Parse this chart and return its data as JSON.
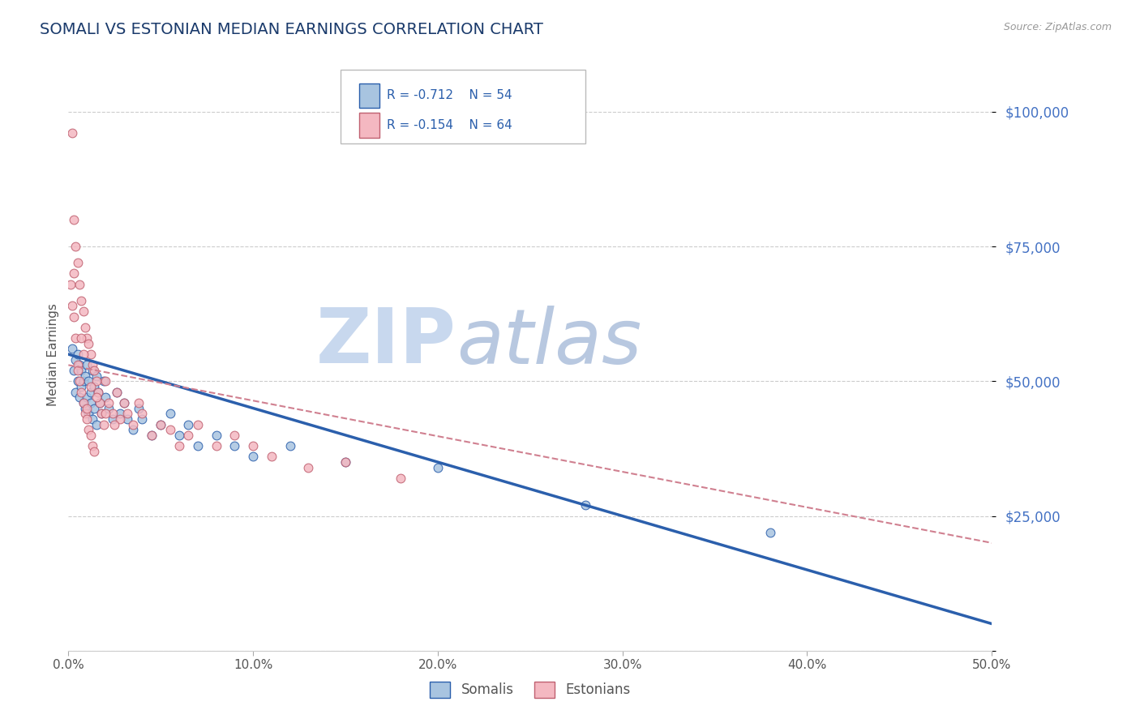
{
  "title": "SOMALI VS ESTONIAN MEDIAN EARNINGS CORRELATION CHART",
  "source": "Source: ZipAtlas.com",
  "ylabel": "Median Earnings",
  "xlim": [
    0,
    0.5
  ],
  "ylim": [
    0,
    110000
  ],
  "yticks": [
    0,
    25000,
    50000,
    75000,
    100000
  ],
  "ytick_labels": [
    "",
    "$25,000",
    "$50,000",
    "$75,000",
    "$100,000"
  ],
  "xtick_labels": [
    "0.0%",
    "10.0%",
    "20.0%",
    "30.0%",
    "40.0%",
    "50.0%"
  ],
  "xticks": [
    0.0,
    0.1,
    0.2,
    0.3,
    0.4,
    0.5
  ],
  "somali_color": "#a8c4e0",
  "estonian_color": "#f4b8c1",
  "trend_somali_color": "#2b5fac",
  "trend_estonian_color": "#d08090",
  "title_color": "#1a3a6b",
  "tick_label_color_y": "#4472c4",
  "watermark_zip_color": "#c8d8ee",
  "watermark_atlas_color": "#b8c8e0",
  "somali_scatter_x": [
    0.002,
    0.003,
    0.004,
    0.004,
    0.005,
    0.005,
    0.006,
    0.006,
    0.007,
    0.007,
    0.008,
    0.008,
    0.009,
    0.009,
    0.01,
    0.01,
    0.011,
    0.011,
    0.012,
    0.012,
    0.013,
    0.013,
    0.014,
    0.014,
    0.015,
    0.015,
    0.016,
    0.017,
    0.018,
    0.019,
    0.02,
    0.022,
    0.024,
    0.026,
    0.028,
    0.03,
    0.032,
    0.035,
    0.038,
    0.04,
    0.045,
    0.05,
    0.055,
    0.06,
    0.065,
    0.07,
    0.08,
    0.09,
    0.1,
    0.12,
    0.15,
    0.2,
    0.28,
    0.38
  ],
  "somali_scatter_y": [
    56000,
    52000,
    54000,
    48000,
    55000,
    50000,
    53000,
    47000,
    52000,
    49000,
    50000,
    46000,
    51000,
    45000,
    53000,
    47000,
    50000,
    44000,
    48000,
    46000,
    52000,
    43000,
    49000,
    45000,
    51000,
    42000,
    48000,
    46000,
    44000,
    50000,
    47000,
    45000,
    43000,
    48000,
    44000,
    46000,
    43000,
    41000,
    45000,
    43000,
    40000,
    42000,
    44000,
    40000,
    42000,
    38000,
    40000,
    38000,
    36000,
    38000,
    35000,
    34000,
    27000,
    22000
  ],
  "estonian_scatter_x": [
    0.001,
    0.002,
    0.003,
    0.003,
    0.004,
    0.004,
    0.005,
    0.005,
    0.006,
    0.006,
    0.007,
    0.007,
    0.008,
    0.008,
    0.009,
    0.009,
    0.01,
    0.01,
    0.011,
    0.011,
    0.012,
    0.012,
    0.013,
    0.013,
    0.014,
    0.014,
    0.015,
    0.016,
    0.017,
    0.018,
    0.019,
    0.02,
    0.022,
    0.024,
    0.026,
    0.028,
    0.03,
    0.032,
    0.035,
    0.038,
    0.04,
    0.045,
    0.05,
    0.055,
    0.06,
    0.065,
    0.07,
    0.08,
    0.09,
    0.1,
    0.11,
    0.13,
    0.15,
    0.18,
    0.005,
    0.003,
    0.002,
    0.007,
    0.012,
    0.008,
    0.015,
    0.02,
    0.025,
    0.01
  ],
  "estonian_scatter_y": [
    68000,
    96000,
    80000,
    62000,
    75000,
    58000,
    72000,
    53000,
    68000,
    50000,
    65000,
    48000,
    63000,
    46000,
    60000,
    44000,
    58000,
    43000,
    57000,
    41000,
    55000,
    40000,
    53000,
    38000,
    52000,
    37000,
    50000,
    48000,
    46000,
    44000,
    42000,
    50000,
    46000,
    44000,
    48000,
    43000,
    46000,
    44000,
    42000,
    46000,
    44000,
    40000,
    42000,
    41000,
    38000,
    40000,
    42000,
    38000,
    40000,
    38000,
    36000,
    34000,
    35000,
    32000,
    52000,
    70000,
    64000,
    58000,
    49000,
    55000,
    47000,
    44000,
    42000,
    45000
  ]
}
